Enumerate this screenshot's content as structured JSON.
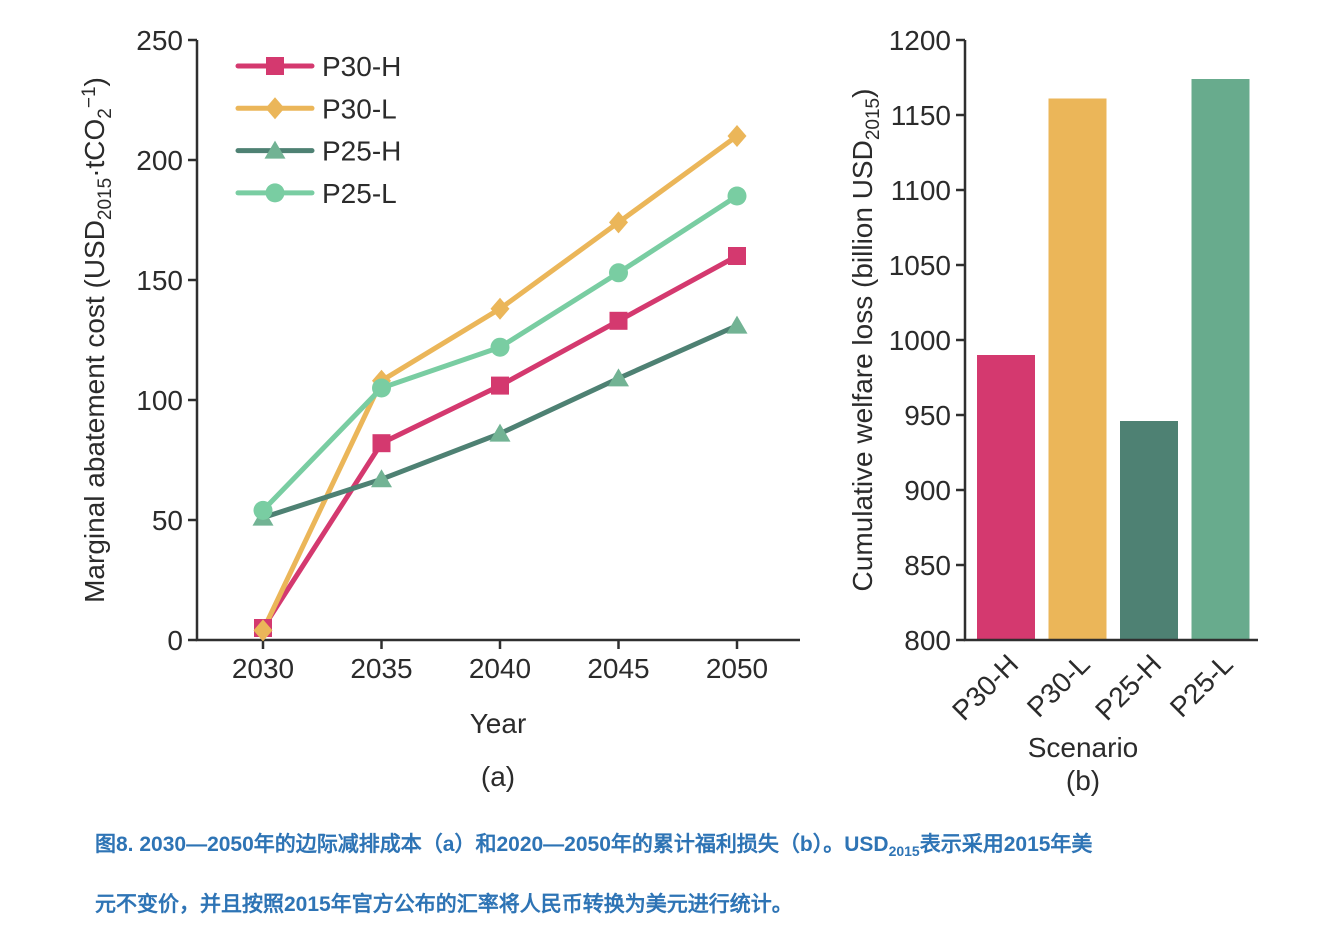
{
  "caption": {
    "color": "#2E74B5",
    "line1": [
      {
        "text": "图8. 2030—2050年的边际减排成本（a）和2020—2050年的累计福利损失（b）。USD"
      },
      {
        "text": "2015",
        "style": "sub"
      },
      {
        "text": "表示采用2015年美"
      }
    ],
    "line2": "元不变价，并且按照2015年官方公布的汇率将人民币转换为美元进行统计。"
  },
  "chart_data": [
    {
      "id": "a",
      "type": "line",
      "panel_label": "(a)",
      "xlabel": "Year",
      "ylabel_parts": [
        {
          "text": "Marginal abatement cost (USD"
        },
        {
          "text": "2015",
          "style": "sub"
        },
        {
          "text": "·tCO"
        },
        {
          "text": "2",
          "style": "sub"
        },
        {
          "text": "−1",
          "style": "sup"
        },
        {
          "text": ")"
        }
      ],
      "x": [
        2030,
        2035,
        2040,
        2045,
        2050
      ],
      "ylim": [
        0,
        250
      ],
      "yticks": [
        0,
        50,
        100,
        150,
        200,
        250
      ],
      "legend_position": "upper-left",
      "grid": false,
      "series": [
        {
          "name": "P30-H",
          "marker": "square",
          "color": "#D4396F",
          "values": [
            5,
            82,
            106,
            133,
            160
          ]
        },
        {
          "name": "P30-L",
          "marker": "diamond",
          "color": "#EBB659",
          "values": [
            4,
            108,
            138,
            174,
            210
          ]
        },
        {
          "name": "P25-H",
          "marker": "triangle",
          "color": "#4E8173",
          "marker_color": "#72B394",
          "values": [
            51,
            67,
            86,
            109,
            131
          ]
        },
        {
          "name": "P25-L",
          "marker": "circle",
          "color": "#79CDA2",
          "values": [
            54,
            105,
            122,
            153,
            185
          ]
        }
      ]
    },
    {
      "id": "b",
      "type": "bar",
      "panel_label": "(b)",
      "xlabel": "Scenario",
      "ylabel_parts": [
        {
          "text": "Cumulative welfare loss (billion USD"
        },
        {
          "text": "2015",
          "style": "sub"
        },
        {
          "text": ")"
        }
      ],
      "categories": [
        "P30-H",
        "P30-L",
        "P25-H",
        "P25-L"
      ],
      "values": [
        990,
        1161,
        946,
        1174
      ],
      "bar_colors": [
        "#D4396F",
        "#EBB659",
        "#4E8173",
        "#68AB8D"
      ],
      "ylim": [
        800,
        1200
      ],
      "yticks": [
        800,
        850,
        900,
        950,
        1000,
        1050,
        1100,
        1150,
        1200
      ],
      "grid": false
    }
  ]
}
